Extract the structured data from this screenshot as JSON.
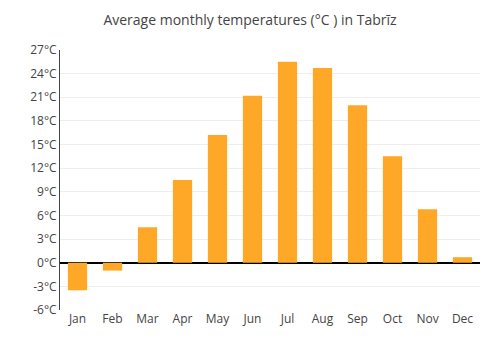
{
  "chart_data": {
    "type": "bar",
    "title": "Average monthly temperatures (°C ) in Tabrīz",
    "categories": [
      "Jan",
      "Feb",
      "Mar",
      "Apr",
      "May",
      "Jun",
      "Jul",
      "Aug",
      "Sep",
      "Oct",
      "Nov",
      "Dec"
    ],
    "values": [
      -3.5,
      -1.0,
      4.5,
      10.5,
      16.2,
      21.2,
      25.5,
      24.7,
      20.0,
      13.5,
      6.8,
      0.7
    ],
    "color": "#FFA726",
    "ylim": [
      -6,
      27
    ],
    "yticks": [
      {
        "value": -6,
        "label": "-6°C"
      },
      {
        "value": -3,
        "label": "-3°C"
      },
      {
        "value": 0,
        "label": "0°C"
      },
      {
        "value": 3,
        "label": "3°C"
      },
      {
        "value": 6,
        "label": "6°C"
      },
      {
        "value": 9,
        "label": "9°C"
      },
      {
        "value": 12,
        "label": "12°C"
      },
      {
        "value": 15,
        "label": "15°C"
      },
      {
        "value": 18,
        "label": "18°C"
      },
      {
        "value": 21,
        "label": "21°C"
      },
      {
        "value": 24,
        "label": "24°C"
      },
      {
        "value": 27,
        "label": "27°C"
      }
    ],
    "grid": true
  }
}
